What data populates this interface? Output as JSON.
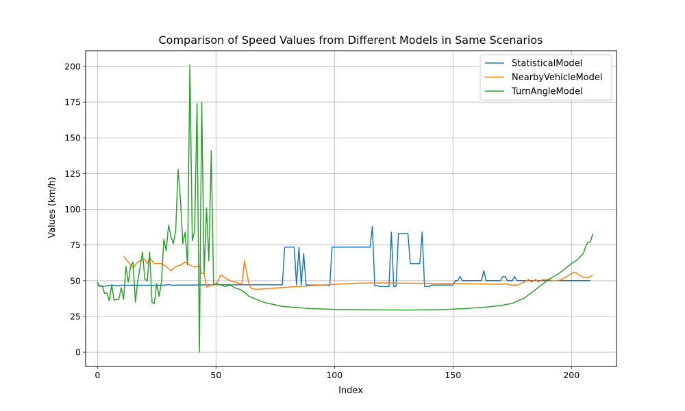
{
  "chart_data": {
    "type": "line",
    "title": "Comparison of Speed Values from Different Models in Same Scenarios",
    "xlabel": "Index",
    "ylabel": "Values (km/h)",
    "xlim": [
      -5,
      219
    ],
    "ylim": [
      -10,
      211
    ],
    "xticks": [
      0,
      50,
      100,
      150,
      200
    ],
    "yticks": [
      0,
      25,
      50,
      75,
      100,
      125,
      150,
      175,
      200
    ],
    "grid": true,
    "legend_position": "top-right",
    "series": [
      {
        "name": "StatisticalModel",
        "color": "#1f77b4",
        "points": [
          [
            0,
            47
          ],
          [
            2,
            46
          ],
          [
            4,
            46.5
          ],
          [
            6,
            47
          ],
          [
            8,
            46.5
          ],
          [
            10,
            46.8
          ],
          [
            20,
            46.8
          ],
          [
            28,
            46.8
          ],
          [
            30,
            47.3
          ],
          [
            32,
            46.8
          ],
          [
            34,
            47
          ],
          [
            40,
            47
          ],
          [
            50,
            47.2
          ],
          [
            60,
            47.2
          ],
          [
            78,
            47.2
          ],
          [
            79,
            73.5
          ],
          [
            83,
            73.5
          ],
          [
            84,
            47
          ],
          [
            85,
            73.5
          ],
          [
            86,
            47
          ],
          [
            87,
            69
          ],
          [
            88,
            47
          ],
          [
            97,
            47
          ],
          [
            98,
            46.5
          ],
          [
            99,
            73.5
          ],
          [
            115,
            73.5
          ],
          [
            116,
            88
          ],
          [
            117,
            46.5
          ],
          [
            118,
            46.5
          ],
          [
            119,
            46
          ],
          [
            123,
            46
          ],
          [
            124,
            84
          ],
          [
            125,
            46
          ],
          [
            126,
            46
          ],
          [
            127,
            83
          ],
          [
            131,
            83
          ],
          [
            132,
            62
          ],
          [
            136,
            62
          ],
          [
            137,
            84
          ],
          [
            138,
            46
          ],
          [
            140,
            46
          ],
          [
            141,
            47
          ],
          [
            150,
            47
          ],
          [
            151,
            50
          ],
          [
            152,
            50
          ],
          [
            153,
            53
          ],
          [
            154,
            50
          ],
          [
            162,
            50
          ],
          [
            163,
            57
          ],
          [
            164,
            50
          ],
          [
            170,
            50
          ],
          [
            171,
            53
          ],
          [
            172,
            53
          ],
          [
            173,
            50
          ],
          [
            175,
            50
          ],
          [
            176,
            53
          ],
          [
            177,
            50
          ],
          [
            208,
            50
          ]
        ]
      },
      {
        "name": "NearbyVehicleModel",
        "color": "#ff7f0e",
        "points": [
          [
            11,
            67
          ],
          [
            13,
            63
          ],
          [
            15,
            59
          ],
          [
            17,
            63
          ],
          [
            19,
            65
          ],
          [
            20,
            65
          ],
          [
            21,
            62
          ],
          [
            22,
            66
          ],
          [
            24,
            62
          ],
          [
            27,
            62
          ],
          [
            29,
            60
          ],
          [
            31,
            57
          ],
          [
            33,
            60
          ],
          [
            35,
            61
          ],
          [
            37,
            63
          ],
          [
            39,
            61
          ],
          [
            41,
            59.5
          ],
          [
            43,
            60.5
          ],
          [
            44,
            55
          ],
          [
            45,
            55
          ],
          [
            46,
            45.5
          ],
          [
            48,
            47
          ],
          [
            50,
            47
          ],
          [
            52,
            54
          ],
          [
            54,
            52
          ],
          [
            56,
            50
          ],
          [
            58,
            49
          ],
          [
            60,
            48
          ],
          [
            61,
            48
          ],
          [
            62,
            64
          ],
          [
            64,
            47
          ],
          [
            65,
            44.5
          ],
          [
            67,
            44
          ],
          [
            72,
            44.5
          ],
          [
            80,
            45.5
          ],
          [
            90,
            46.5
          ],
          [
            100,
            47.5
          ],
          [
            110,
            48.3
          ],
          [
            120,
            48.5
          ],
          [
            130,
            48.3
          ],
          [
            140,
            48.2
          ],
          [
            150,
            48
          ],
          [
            160,
            47.8
          ],
          [
            170,
            47.5
          ],
          [
            172,
            48
          ],
          [
            174,
            47
          ],
          [
            177,
            47
          ],
          [
            180,
            49
          ],
          [
            182,
            51
          ],
          [
            183,
            49
          ],
          [
            185,
            51
          ],
          [
            186,
            49
          ],
          [
            188,
            51
          ],
          [
            190,
            51
          ],
          [
            192,
            50
          ],
          [
            194,
            50
          ],
          [
            196,
            51
          ],
          [
            198,
            53
          ],
          [
            200,
            55
          ],
          [
            201,
            56
          ],
          [
            202,
            55.5
          ],
          [
            203,
            54
          ],
          [
            205,
            52.5
          ],
          [
            207,
            52
          ],
          [
            208,
            53
          ],
          [
            209,
            54
          ]
        ]
      },
      {
        "name": "TurnAngleModel",
        "color": "#2ca02c",
        "points": [
          [
            0,
            49
          ],
          [
            1,
            46
          ],
          [
            2,
            46.5
          ],
          [
            3,
            41
          ],
          [
            4,
            41.5
          ],
          [
            5,
            36
          ],
          [
            6,
            47
          ],
          [
            7,
            36.5
          ],
          [
            9,
            37
          ],
          [
            10,
            45
          ],
          [
            11,
            37
          ],
          [
            12,
            60
          ],
          [
            13,
            49
          ],
          [
            14,
            60
          ],
          [
            15,
            63
          ],
          [
            16,
            35
          ],
          [
            17,
            50
          ],
          [
            18,
            60
          ],
          [
            19,
            70
          ],
          [
            20,
            51
          ],
          [
            21,
            50
          ],
          [
            22,
            70
          ],
          [
            23,
            35
          ],
          [
            24,
            34
          ],
          [
            25,
            48
          ],
          [
            26,
            39
          ],
          [
            27,
            49
          ],
          [
            28,
            79
          ],
          [
            29,
            71
          ],
          [
            30,
            89
          ],
          [
            31,
            81
          ],
          [
            32,
            76
          ],
          [
            33,
            85
          ],
          [
            34,
            128
          ],
          [
            35,
            107
          ],
          [
            36,
            76
          ],
          [
            37,
            84
          ],
          [
            38,
            61
          ],
          [
            39,
            201
          ],
          [
            40,
            78
          ],
          [
            41,
            85
          ],
          [
            42,
            174
          ],
          [
            43,
            0
          ],
          [
            44,
            175
          ],
          [
            45,
            55
          ],
          [
            46,
            101
          ],
          [
            47,
            64
          ],
          [
            48,
            141
          ],
          [
            49,
            47
          ],
          [
            50,
            48
          ],
          [
            52,
            47
          ],
          [
            54,
            46
          ],
          [
            56,
            47
          ],
          [
            58,
            45
          ],
          [
            60,
            44
          ],
          [
            62,
            42
          ],
          [
            64,
            39
          ],
          [
            70,
            35
          ],
          [
            78,
            32
          ],
          [
            90,
            30.5
          ],
          [
            100,
            30
          ],
          [
            115,
            29.7
          ],
          [
            130,
            29.5
          ],
          [
            145,
            29.8
          ],
          [
            155,
            30.5
          ],
          [
            165,
            31.7
          ],
          [
            170,
            32.6
          ],
          [
            175,
            34.2
          ],
          [
            180,
            37.8
          ],
          [
            185,
            44
          ],
          [
            190,
            50.5
          ],
          [
            195,
            55.5
          ],
          [
            200,
            62
          ],
          [
            202,
            64
          ],
          [
            205,
            69
          ],
          [
            206,
            74
          ],
          [
            207,
            77
          ],
          [
            208,
            77
          ],
          [
            209,
            83
          ]
        ]
      }
    ]
  }
}
